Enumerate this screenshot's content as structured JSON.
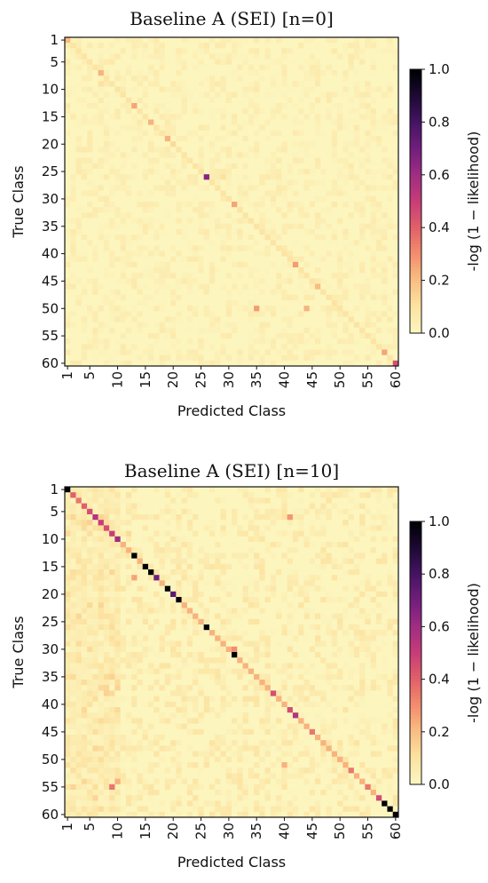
{
  "chart_data": [
    {
      "type": "heatmap",
      "title": "Baseline A (SEI) [n=0]",
      "xlabel": "Predicted Class",
      "ylabel": "True Class",
      "n_classes": 60,
      "x_ticks": [
        1,
        5,
        10,
        15,
        20,
        25,
        30,
        35,
        40,
        45,
        50,
        55,
        60
      ],
      "y_ticks": [
        1,
        5,
        10,
        15,
        20,
        25,
        30,
        35,
        40,
        45,
        50,
        55,
        60
      ],
      "colorbar": {
        "label": "-log (1 − likelihood)",
        "ticks": [
          "0.0",
          "0.2",
          "0.4",
          "0.6",
          "0.8",
          "1.0"
        ],
        "range": [
          0,
          1
        ],
        "colormap": "magma_r"
      },
      "diagonal": {
        "base": 0.09,
        "highlights": {
          "1": 0.2,
          "7": 0.22,
          "13": 0.25,
          "16": 0.22,
          "19": 0.22,
          "26": 0.65,
          "31": 0.25,
          "42": 0.27,
          "46": 0.2,
          "58": 0.25,
          "60": 0.45
        }
      },
      "off_diagonal": [
        {
          "true": 50,
          "pred": 35,
          "value": 0.27
        },
        {
          "true": 50,
          "pred": 44,
          "value": 0.22
        },
        {
          "true": 26,
          "pred": 29,
          "value": 0.1
        },
        {
          "true": 9,
          "pred": 7,
          "value": 0.1
        },
        {
          "true": 20,
          "pred": 20,
          "value": 0.12
        }
      ]
    },
    {
      "type": "heatmap",
      "title": "Baseline A (SEI) [n=10]",
      "xlabel": "Predicted Class",
      "ylabel": "True Class",
      "n_classes": 60,
      "x_ticks": [
        1,
        5,
        10,
        15,
        20,
        25,
        30,
        35,
        40,
        45,
        50,
        55,
        60
      ],
      "y_ticks": [
        1,
        5,
        10,
        15,
        20,
        25,
        30,
        35,
        40,
        45,
        50,
        55,
        60
      ],
      "colorbar": {
        "label": "-log (1 − likelihood)",
        "ticks": [
          "0.0",
          "0.2",
          "0.4",
          "0.6",
          "0.8",
          "1.0"
        ],
        "range": [
          0,
          1
        ],
        "colormap": "magma_r"
      },
      "diagonal": {
        "base": 0.22,
        "highlights": {
          "1": 1.0,
          "2": 0.4,
          "3": 0.35,
          "4": 0.4,
          "5": 0.45,
          "6": 0.55,
          "7": 0.5,
          "8": 0.45,
          "9": 0.5,
          "10": 0.6,
          "13": 1.0,
          "15": 1.0,
          "16": 1.0,
          "17": 0.7,
          "19": 1.0,
          "20": 0.75,
          "21": 1.0,
          "26": 1.0,
          "31": 1.0,
          "38": 0.45,
          "41": 0.45,
          "42": 0.55,
          "45": 0.35,
          "52": 0.35,
          "55": 0.35,
          "57": 0.45,
          "58": 1.0,
          "59": 1.0,
          "60": 1.0
        }
      },
      "off_diagonal": [
        {
          "true": 6,
          "pred": 41,
          "value": 0.28
        },
        {
          "true": 17,
          "pred": 13,
          "value": 0.25
        },
        {
          "true": 55,
          "pred": 9,
          "value": 0.35
        },
        {
          "true": 54,
          "pred": 10,
          "value": 0.22
        },
        {
          "true": 30,
          "pred": 31,
          "value": 0.3
        },
        {
          "true": 51,
          "pred": 40,
          "value": 0.22
        },
        {
          "true": 9,
          "pred": 12,
          "value": 0.12
        },
        {
          "true": 37,
          "pred": 10,
          "value": 0.14
        }
      ]
    }
  ]
}
